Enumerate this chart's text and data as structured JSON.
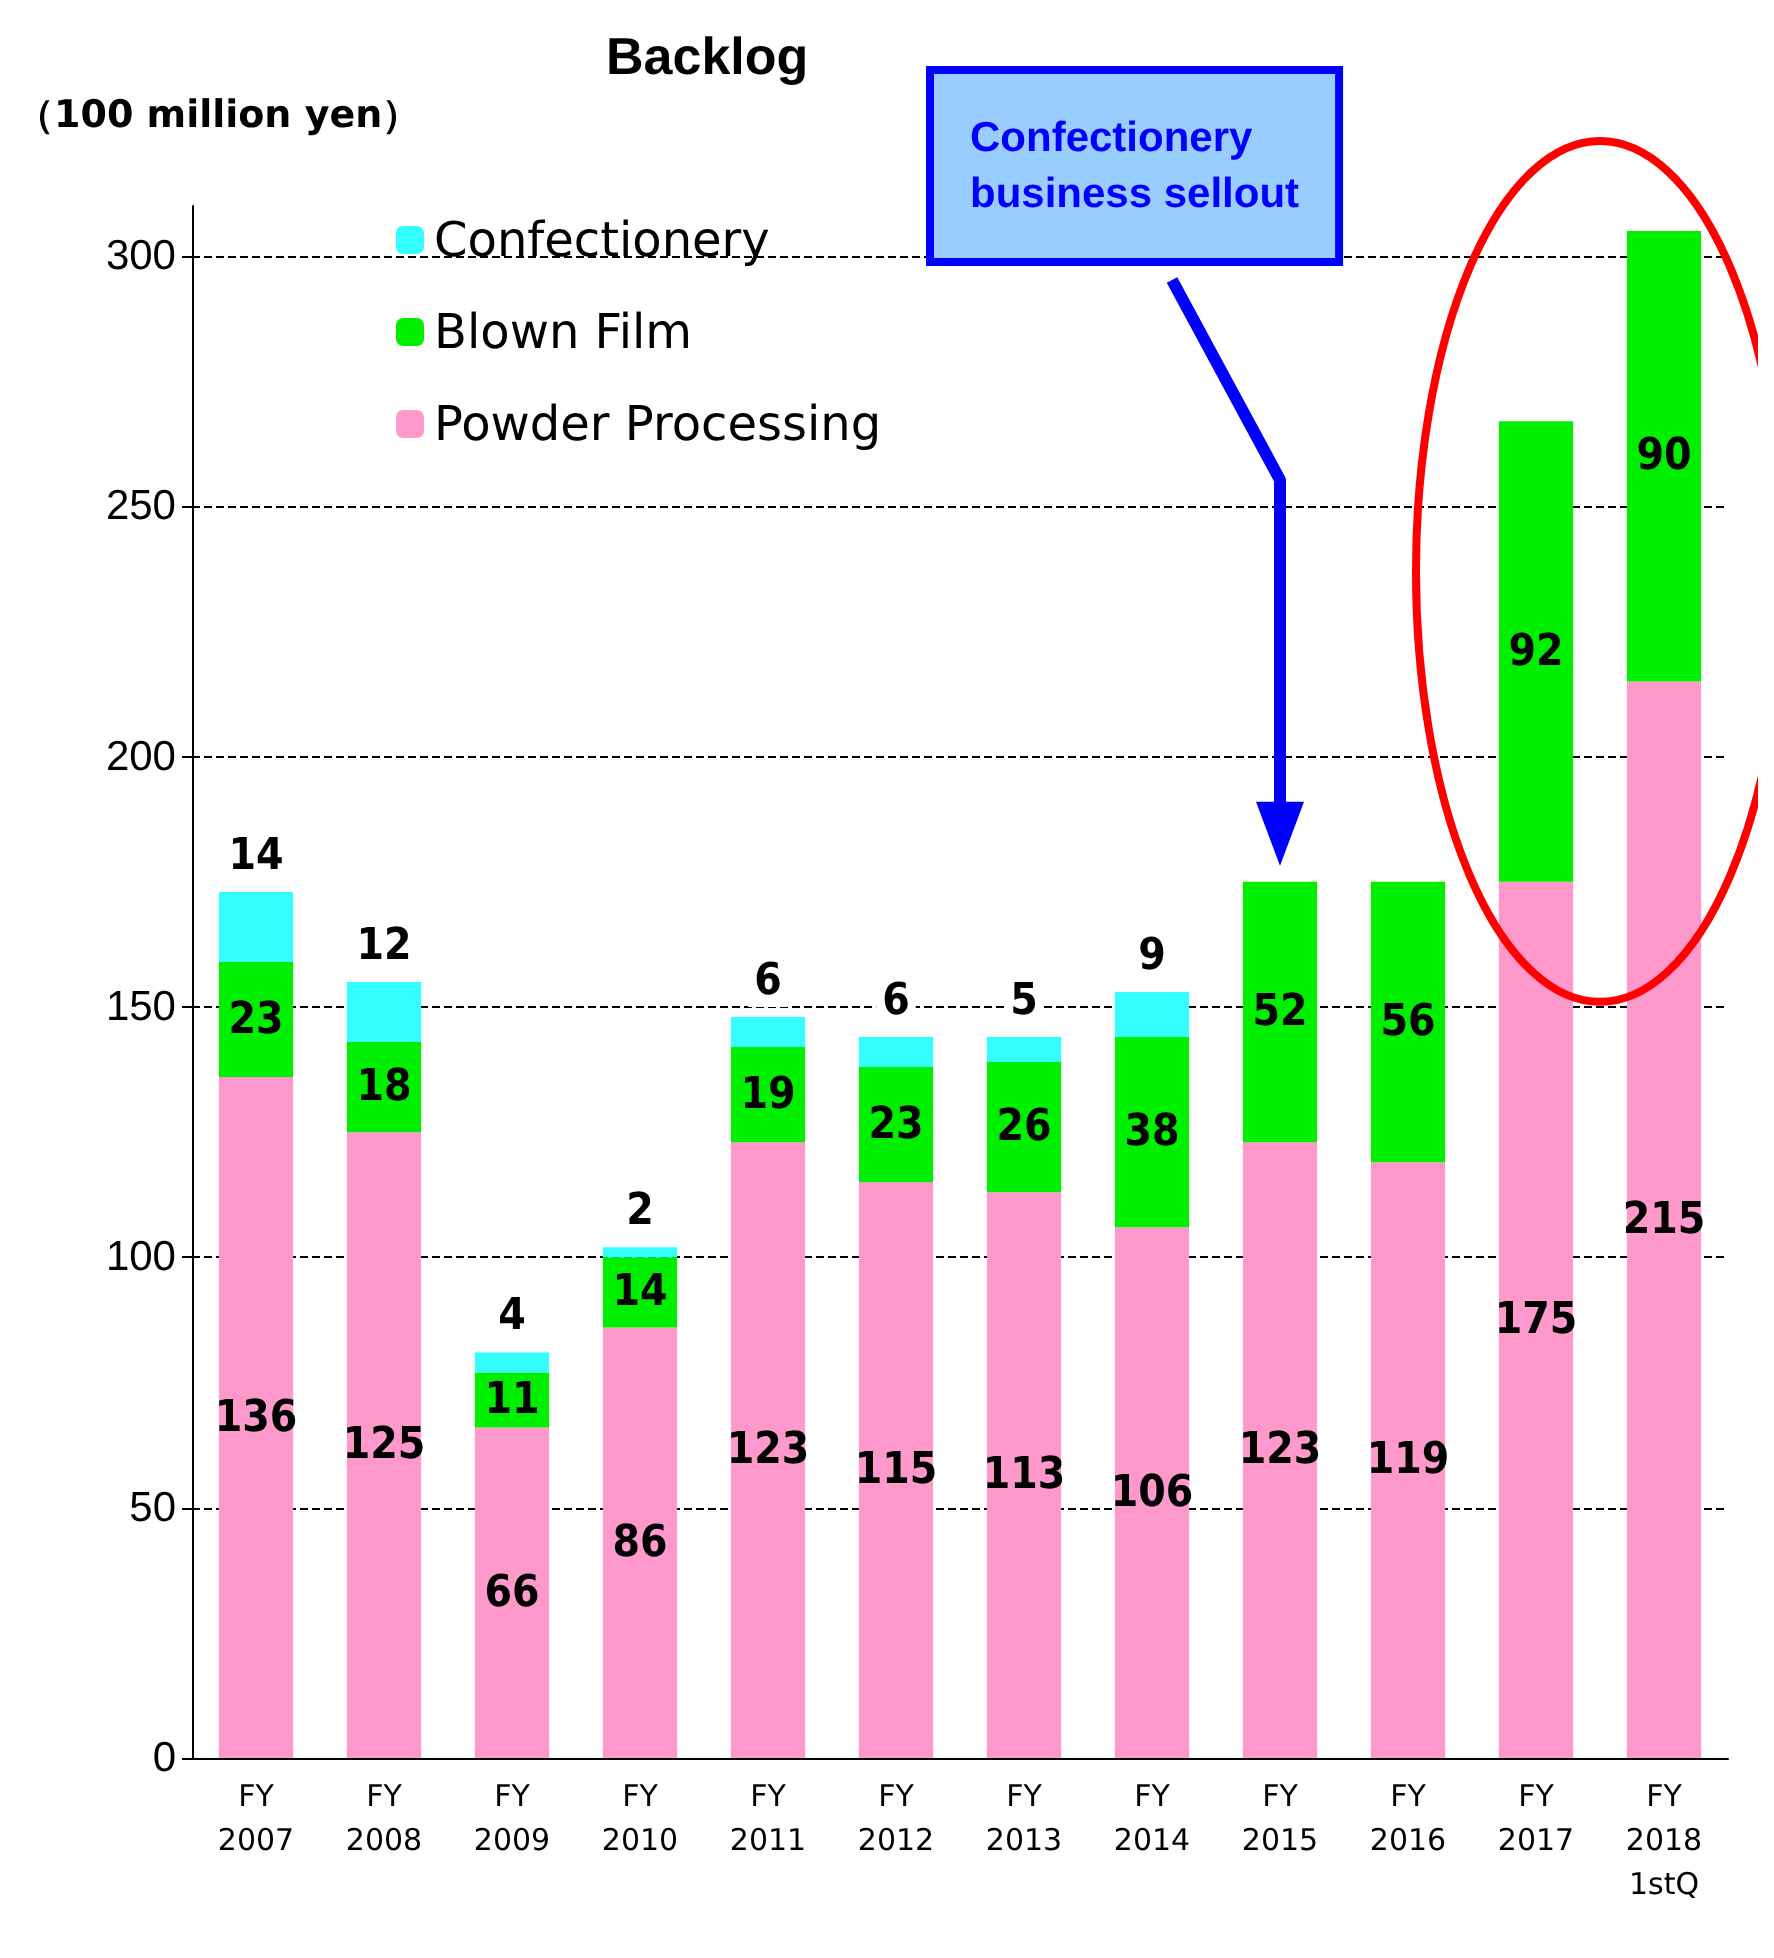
{
  "chart_data": {
    "type": "bar",
    "title": "Backlog",
    "ylabel": "（100 million yen）",
    "categories": [
      "FY\n2007",
      "FY\n2008",
      "FY\n2009",
      "FY\n2010",
      "FY\n2011",
      "FY\n2012",
      "FY\n2013",
      "FY\n2014",
      "FY\n2015",
      "FY\n2016",
      "FY\n2017",
      "FY\n2018\n1stQ"
    ],
    "stacked": true,
    "series": [
      {
        "name": "Powder Processing",
        "color": "#ff99cc",
        "values": [
          136,
          125,
          66,
          86,
          123,
          115,
          113,
          106,
          123,
          119,
          175,
          215
        ]
      },
      {
        "name": "Blown Film",
        "color": "#00ee00",
        "values": [
          23,
          18,
          11,
          14,
          19,
          23,
          26,
          38,
          52,
          56,
          92,
          90
        ]
      },
      {
        "name": "Confectionery",
        "color": "#33ffff",
        "values": [
          14,
          12,
          4,
          2,
          6,
          6,
          5,
          9,
          null,
          null,
          null,
          null
        ]
      }
    ],
    "ylim": [
      0,
      310
    ],
    "yticks": [
      0,
      50,
      100,
      150,
      200,
      250,
      300
    ],
    "grid": "y",
    "legend": "top left",
    "data_labels": true,
    "annotations": [
      "Confectionery\nbusiness sellout"
    ]
  }
}
